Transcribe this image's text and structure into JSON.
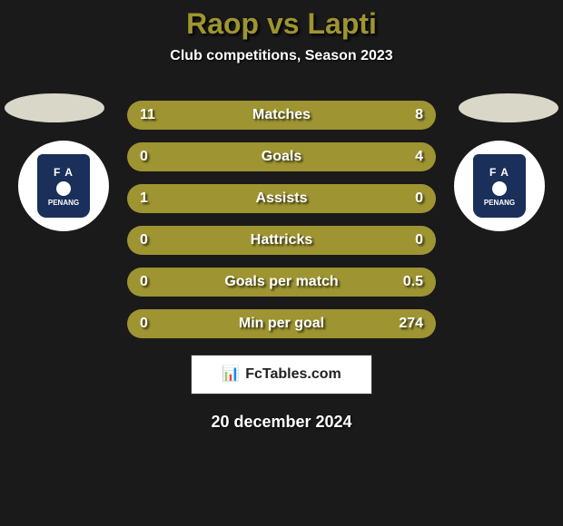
{
  "title": "Raop vs Lapti",
  "subtitle": "Club competitions, Season 2023",
  "date": "20 december 2024",
  "branding": {
    "text": "FcTables.com",
    "icon": "📊"
  },
  "colors": {
    "bar_bg": "#6d652a",
    "fill_left": "#9e9431",
    "fill_right": "#9e9431",
    "text": "#ffffff"
  },
  "badge": {
    "top_text": "F  A",
    "bottom_text": "PENANG"
  },
  "bars": [
    {
      "label": "Matches",
      "left": "11",
      "right": "8",
      "left_pct": 58,
      "right_pct": 42
    },
    {
      "label": "Goals",
      "left": "0",
      "right": "4",
      "left_pct": 5,
      "right_pct": 95
    },
    {
      "label": "Assists",
      "left": "1",
      "right": "0",
      "left_pct": 95,
      "right_pct": 5
    },
    {
      "label": "Hattricks",
      "left": "0",
      "right": "0",
      "left_pct": 50,
      "right_pct": 50
    },
    {
      "label": "Goals per match",
      "left": "0",
      "right": "0.5",
      "left_pct": 5,
      "right_pct": 95
    },
    {
      "label": "Min per goal",
      "left": "0",
      "right": "274",
      "left_pct": 5,
      "right_pct": 95
    }
  ]
}
